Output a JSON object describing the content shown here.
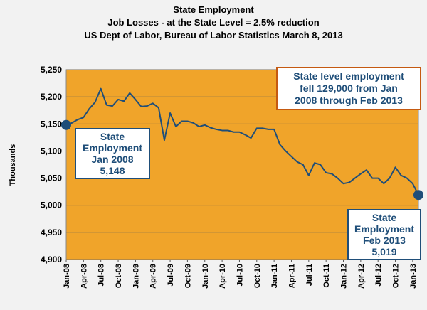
{
  "chart_data": {
    "type": "line",
    "title_lines": [
      "State Employment",
      "Job Losses - at the State Level  = 2.5% reduction",
      "US Dept of Labor, Bureau of Labor Statistics March 8, 2013"
    ],
    "ylabel": "Thousands",
    "ylim": [
      4900,
      5250
    ],
    "yticks": [
      4900,
      4950,
      5000,
      5050,
      5100,
      5150,
      5200,
      5250
    ],
    "ytick_labels": [
      "4,900",
      "4,950",
      "5,000",
      "5,050",
      "5,100",
      "5,150",
      "5,200",
      "5,250"
    ],
    "x_tick_labels": [
      "Jan-08",
      "Apr-08",
      "Jul-08",
      "Oct-08",
      "Jan-09",
      "Apr-09",
      "Jul-09",
      "Oct-09",
      "Jan-10",
      "Apr-10",
      "Jul-10",
      "Oct-10",
      "Jan-11",
      "Apr-11",
      "Jul-11",
      "Oct-11",
      "Jan-12",
      "Apr-12",
      "Jul-12",
      "Oct-12",
      "Jan-13"
    ],
    "start_label": "Jan-08",
    "grid": true,
    "values": [
      5148,
      5152,
      5158,
      5162,
      5178,
      5190,
      5215,
      5185,
      5183,
      5195,
      5192,
      5207,
      5195,
      5182,
      5183,
      5188,
      5180,
      5120,
      5170,
      5145,
      5155,
      5155,
      5152,
      5145,
      5148,
      5143,
      5140,
      5138,
      5138,
      5135,
      5135,
      5130,
      5124,
      5142,
      5142,
      5140,
      5140,
      5112,
      5100,
      5090,
      5080,
      5075,
      5055,
      5078,
      5075,
      5060,
      5058,
      5050,
      5040,
      5042,
      5050,
      5058,
      5065,
      5050,
      5050,
      5040,
      5050,
      5070,
      5055,
      5050,
      5040,
      5019
    ],
    "start_point": {
      "value": 5148
    },
    "end_point": {
      "value": 5019
    },
    "annotations": {
      "start": [
        "State",
        "Employment",
        "Jan 2008",
        "5,148"
      ],
      "end": [
        "State",
        "Employment",
        "Feb 2013",
        "5,019"
      ],
      "summary": [
        "State level employment",
        "fell 129,000 from Jan",
        "2008 through Feb 2013"
      ]
    },
    "colors": {
      "plot_background": "#f0a42a",
      "line": "#1f4e79",
      "marker": "#1f4e79",
      "summary_border": "#c55a11",
      "page_background": "#f2f2f2"
    }
  }
}
